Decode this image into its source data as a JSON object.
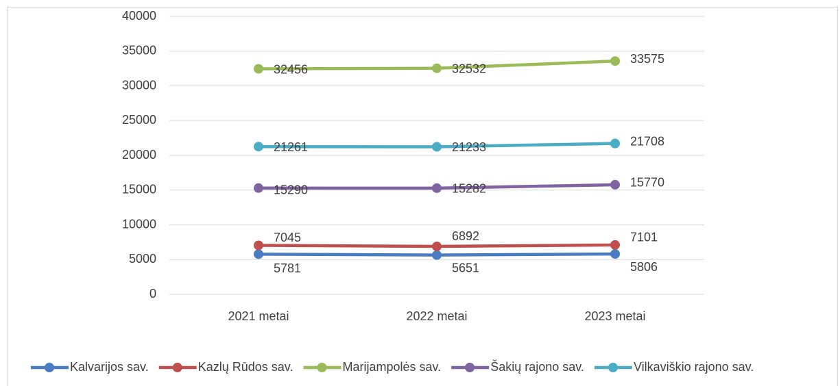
{
  "chart_data": {
    "type": "line",
    "categories": [
      "2021 metai",
      "2022 metai",
      "2023 metai"
    ],
    "series": [
      {
        "name": "Kalvarijos sav.",
        "color": "#4a7cc4",
        "values": [
          5781,
          5651,
          5806
        ]
      },
      {
        "name": "Kazlų Rūdos sav.",
        "color": "#c0504d",
        "values": [
          7045,
          6892,
          7101
        ]
      },
      {
        "name": "Marijampolės sav.",
        "color": "#9bbb59",
        "values": [
          32456,
          32532,
          33575
        ]
      },
      {
        "name": "Šakių rajono sav.",
        "color": "#8064a2",
        "values": [
          15290,
          15282,
          15770
        ]
      },
      {
        "name": "Vilkaviškio rajono sav.",
        "color": "#4bacc6",
        "values": [
          21261,
          21233,
          21708
        ]
      }
    ],
    "ylim": [
      0,
      40000
    ],
    "yticks": [
      0,
      5000,
      10000,
      15000,
      20000,
      25000,
      30000,
      35000,
      40000
    ],
    "grid": true,
    "legend": "bottom"
  }
}
